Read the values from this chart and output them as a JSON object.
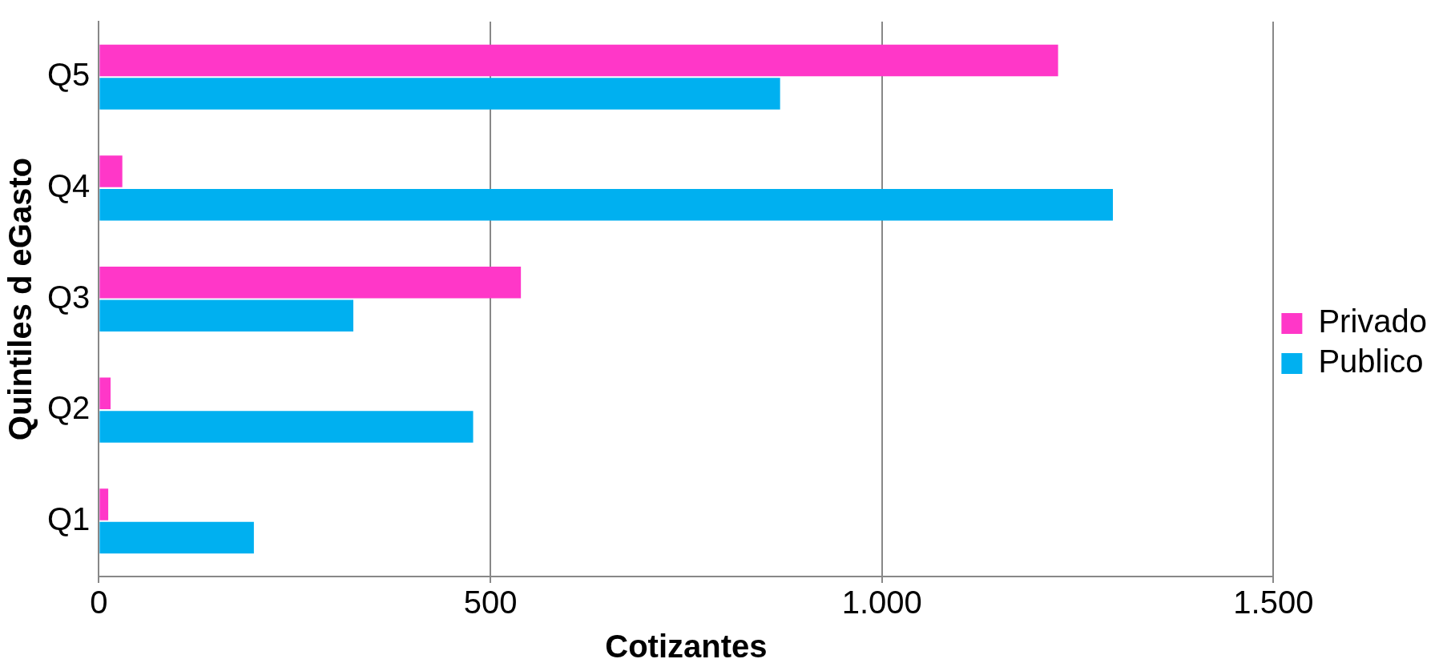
{
  "chart_data": {
    "type": "bar",
    "orientation": "horizontal",
    "xlabel": "Cotizantes",
    "ylabel": "Quintiles d eGasto",
    "categories": [
      "Q5",
      "Q4",
      "Q3",
      "Q2",
      "Q1"
    ],
    "series": [
      {
        "name": "Privado",
        "color": "#ff37c8",
        "values": [
          1225,
          30,
          539,
          15,
          12
        ]
      },
      {
        "name": "Publico",
        "color": "#00b0f0",
        "values": [
          870,
          1295,
          325,
          478,
          198
        ]
      }
    ],
    "xlim": [
      0,
      1500
    ],
    "xticks": [
      0,
      500,
      {
        "value": 1000,
        "label": "1.000"
      },
      {
        "value": 1500,
        "label": "1.500"
      }
    ],
    "grid": "x",
    "legend": "right"
  }
}
